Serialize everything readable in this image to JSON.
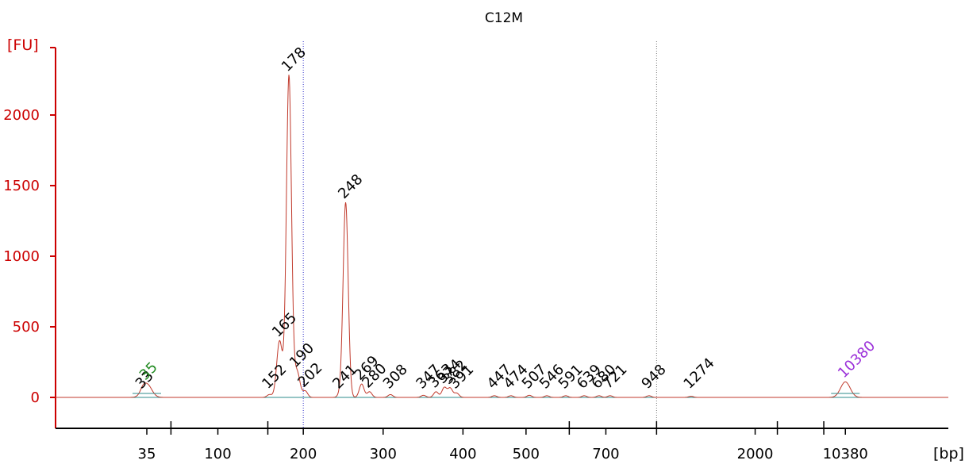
{
  "chart_data": {
    "type": "line",
    "title": "C12M",
    "ylabel": "[FU]",
    "xlabel": "[bp]",
    "y_ticks": [
      0,
      500,
      1000,
      1500,
      2000
    ],
    "ylim": [
      -200,
      2600
    ],
    "x_tick_labels": [
      "35",
      "100",
      "200",
      "300",
      "400",
      "500",
      "700",
      "2000",
      "10380"
    ],
    "x_ticks": [
      {
        "bp": 35,
        "label": "35",
        "pos": 0.0
      },
      {
        "bp": 100,
        "label": "100",
        "pos": 0.89
      },
      {
        "bp": 200,
        "label": "200",
        "pos": 1.96
      },
      {
        "bp": 300,
        "label": "300",
        "pos": 2.96
      },
      {
        "bp": 400,
        "label": "400",
        "pos": 3.96
      },
      {
        "bp": 500,
        "label": "500",
        "pos": 4.75
      },
      {
        "bp": 700,
        "label": "700",
        "pos": 5.75
      },
      {
        "bp": 2000,
        "label": "2000",
        "pos": 7.62
      },
      {
        "bp": 10380,
        "label": "10380",
        "pos": 8.75
      }
    ],
    "extra_tick_marks_bp": [
      50,
      150,
      600,
      1000,
      3000,
      7000
    ],
    "vertical_reference_lines_bp": [
      200,
      1000
    ],
    "markers": [
      {
        "label": "35",
        "bp": 35,
        "height": 95,
        "kind": "lower-marker"
      },
      {
        "label": "10380",
        "bp": 10380,
        "height": 110,
        "kind": "upper-marker"
      }
    ],
    "peaks": [
      {
        "label": "33",
        "bp": 33,
        "height": 20
      },
      {
        "label": "152",
        "bp": 152,
        "height": 20
      },
      {
        "label": "165",
        "bp": 165,
        "height": 400
      },
      {
        "label": "178",
        "bp": 178,
        "height": 2280
      },
      {
        "label": "190",
        "bp": 190,
        "height": 185
      },
      {
        "label": "202",
        "bp": 202,
        "height": 45
      },
      {
        "label": "241",
        "bp": 241,
        "height": 20
      },
      {
        "label": "248",
        "bp": 248,
        "height": 1380
      },
      {
        "label": "269",
        "bp": 269,
        "height": 95
      },
      {
        "label": "280",
        "bp": 280,
        "height": 40
      },
      {
        "label": "308",
        "bp": 308,
        "height": 20
      },
      {
        "label": "347",
        "bp": 347,
        "height": 15
      },
      {
        "label": "363",
        "bp": 363,
        "height": 40
      },
      {
        "label": "374",
        "bp": 374,
        "height": 70
      },
      {
        "label": "382",
        "bp": 382,
        "height": 65
      },
      {
        "label": "391",
        "bp": 391,
        "height": 30
      },
      {
        "label": "447",
        "bp": 447,
        "height": 12
      },
      {
        "label": "474",
        "bp": 474,
        "height": 12
      },
      {
        "label": "507",
        "bp": 507,
        "height": 15
      },
      {
        "label": "546",
        "bp": 546,
        "height": 12
      },
      {
        "label": "591",
        "bp": 591,
        "height": 12
      },
      {
        "label": "639",
        "bp": 639,
        "height": 12
      },
      {
        "label": "680",
        "bp": 680,
        "height": 12
      },
      {
        "label": "721",
        "bp": 721,
        "height": 12
      },
      {
        "label": "948",
        "bp": 948,
        "height": 12
      },
      {
        "label": "1274",
        "bp": 1274,
        "height": 8
      }
    ],
    "colors": {
      "axis": "#cc0000",
      "trace": "#c0392b",
      "baseline": "#2e8b8b",
      "lower_marker": "#228b22",
      "upper_marker": "#9b30d9",
      "ref_line_200": "#3333cc",
      "ref_line_1000": "#777777",
      "text": "#000000"
    }
  }
}
